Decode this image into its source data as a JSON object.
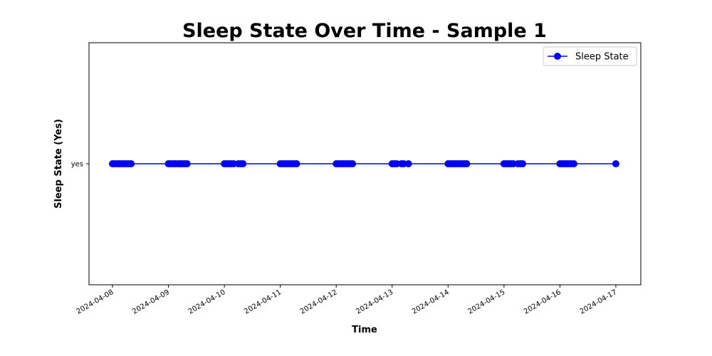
{
  "chart_data": {
    "type": "line",
    "title": "Sleep State Over Time - Sample 1",
    "xlabel": "Time",
    "ylabel": "Sleep State (Yes)",
    "x_ticks": [
      "2024-04-08",
      "2024-04-09",
      "2024-04-10",
      "2024-04-11",
      "2024-04-12",
      "2024-04-13",
      "2024-04-14",
      "2024-04-15",
      "2024-04-16",
      "2024-04-17"
    ],
    "y_ticks": [
      "yes"
    ],
    "grid": false,
    "legend_position": "top-right",
    "series": [
      {
        "name": "Sleep State",
        "color": "#0000ff",
        "marker": "circle",
        "y_value": "yes",
        "x": [
          "2024-04-08 00:00",
          "2024-04-08 01:00",
          "2024-04-08 02:00",
          "2024-04-08 03:00",
          "2024-04-08 04:00",
          "2024-04-08 05:00",
          "2024-04-08 06:00",
          "2024-04-08 07:00",
          "2024-04-08 08:00",
          "2024-04-09 00:00",
          "2024-04-09 01:00",
          "2024-04-09 02:00",
          "2024-04-09 03:00",
          "2024-04-09 04:00",
          "2024-04-09 05:00",
          "2024-04-09 06:00",
          "2024-04-09 07:00",
          "2024-04-09 08:00",
          "2024-04-10 00:00",
          "2024-04-10 01:00",
          "2024-04-10 02:00",
          "2024-04-10 03:00",
          "2024-04-10 04:00",
          "2024-04-10 06:00",
          "2024-04-10 07:00",
          "2024-04-10 08:00",
          "2024-04-11 00:00",
          "2024-04-11 01:00",
          "2024-04-11 02:00",
          "2024-04-11 03:00",
          "2024-04-11 04:00",
          "2024-04-11 05:00",
          "2024-04-11 06:00",
          "2024-04-11 07:00",
          "2024-04-12 00:00",
          "2024-04-12 01:00",
          "2024-04-12 02:00",
          "2024-04-12 03:00",
          "2024-04-12 04:00",
          "2024-04-12 05:00",
          "2024-04-12 06:00",
          "2024-04-12 07:00",
          "2024-04-13 00:00",
          "2024-04-13 01:00",
          "2024-04-13 02:00",
          "2024-04-13 04:00",
          "2024-04-13 05:00",
          "2024-04-13 07:00",
          "2024-04-14 00:00",
          "2024-04-14 01:00",
          "2024-04-14 02:00",
          "2024-04-14 03:00",
          "2024-04-14 04:00",
          "2024-04-14 05:00",
          "2024-04-14 06:00",
          "2024-04-14 07:00",
          "2024-04-14 08:00",
          "2024-04-15 00:00",
          "2024-04-15 01:00",
          "2024-04-15 02:00",
          "2024-04-15 03:00",
          "2024-04-15 04:00",
          "2024-04-15 06:00",
          "2024-04-15 07:00",
          "2024-04-15 08:00",
          "2024-04-16 00:00",
          "2024-04-16 01:00",
          "2024-04-16 02:00",
          "2024-04-16 03:00",
          "2024-04-16 04:00",
          "2024-04-16 05:00",
          "2024-04-16 06:00",
          "2024-04-17 00:00"
        ]
      }
    ]
  }
}
